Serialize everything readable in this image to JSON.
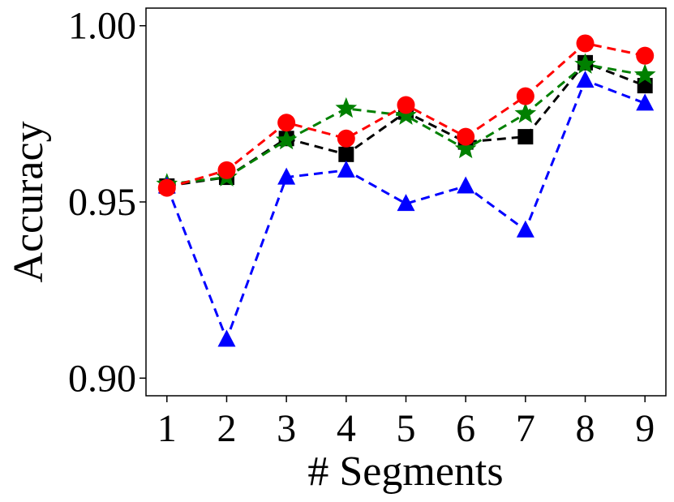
{
  "chart_data": {
    "type": "line",
    "title": "",
    "xlabel": "# Segments",
    "ylabel": "Accuracy",
    "x": [
      1,
      2,
      3,
      4,
      5,
      6,
      7,
      8,
      9
    ],
    "xlim": [
      0.65,
      9.35
    ],
    "ylim": [
      0.895,
      1.005
    ],
    "yticks": [
      0.9,
      0.95,
      1.0
    ],
    "ytick_labels": [
      "0.90",
      "0.95",
      "1.00"
    ],
    "xtick_labels": [
      "1",
      "2",
      "3",
      "4",
      "5",
      "6",
      "7",
      "8",
      "9"
    ],
    "grid": false,
    "series": [
      {
        "name": "black-square",
        "color": "#000000",
        "marker": "square",
        "values": [
          0.9545,
          0.957,
          0.968,
          0.9635,
          0.9755,
          0.967,
          0.9685,
          0.9895,
          0.983
        ]
      },
      {
        "name": "green-star",
        "color": "#008000",
        "marker": "star",
        "values": [
          0.955,
          0.957,
          0.9675,
          0.9765,
          0.9745,
          0.965,
          0.975,
          0.989,
          0.986
        ]
      },
      {
        "name": "blue-triangle",
        "color": "#0000ff",
        "marker": "triangle",
        "values": [
          0.9545,
          0.911,
          0.957,
          0.959,
          0.9495,
          0.9545,
          0.942,
          0.9845,
          0.978
        ]
      },
      {
        "name": "red-circle",
        "color": "#ff0000",
        "marker": "circle",
        "values": [
          0.954,
          0.959,
          0.9725,
          0.968,
          0.9775,
          0.9685,
          0.98,
          0.995,
          0.9915
        ]
      }
    ]
  }
}
